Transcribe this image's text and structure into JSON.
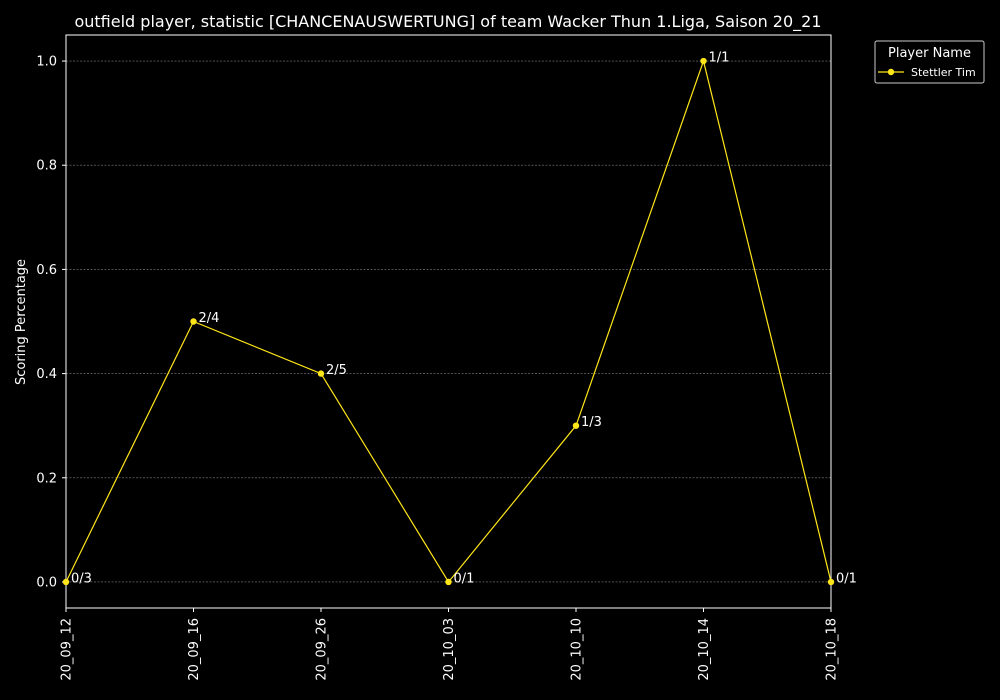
{
  "chart_data": {
    "type": "line",
    "title": "outfield player, statistic [CHANCENAUSWERTUNG] of team Wacker Thun 1.Liga, Saison 20_21",
    "xlabel": "",
    "ylabel": "Scoring Percentage",
    "categories": [
      "20_09_12",
      "20_09_16",
      "20_09_26",
      "20_10_03",
      "20_10_10",
      "20_10_14",
      "20_10_18"
    ],
    "yticks": [
      "0.0",
      "0.2",
      "0.4",
      "0.6",
      "0.8",
      "1.0"
    ],
    "ylim": [
      -0.05,
      1.05
    ],
    "grid": true,
    "legend": {
      "title": "Player Name",
      "placement": "outside-top-right"
    },
    "series": [
      {
        "name": "Stettler Tim",
        "color": "#ffe619",
        "values": [
          0.0,
          0.5,
          0.4,
          0.0,
          0.3,
          1.0,
          0.0
        ],
        "labels": [
          "0/3",
          "2/4",
          "2/5",
          "0/1",
          "1/3",
          "1/1",
          "0/1"
        ]
      }
    ]
  }
}
